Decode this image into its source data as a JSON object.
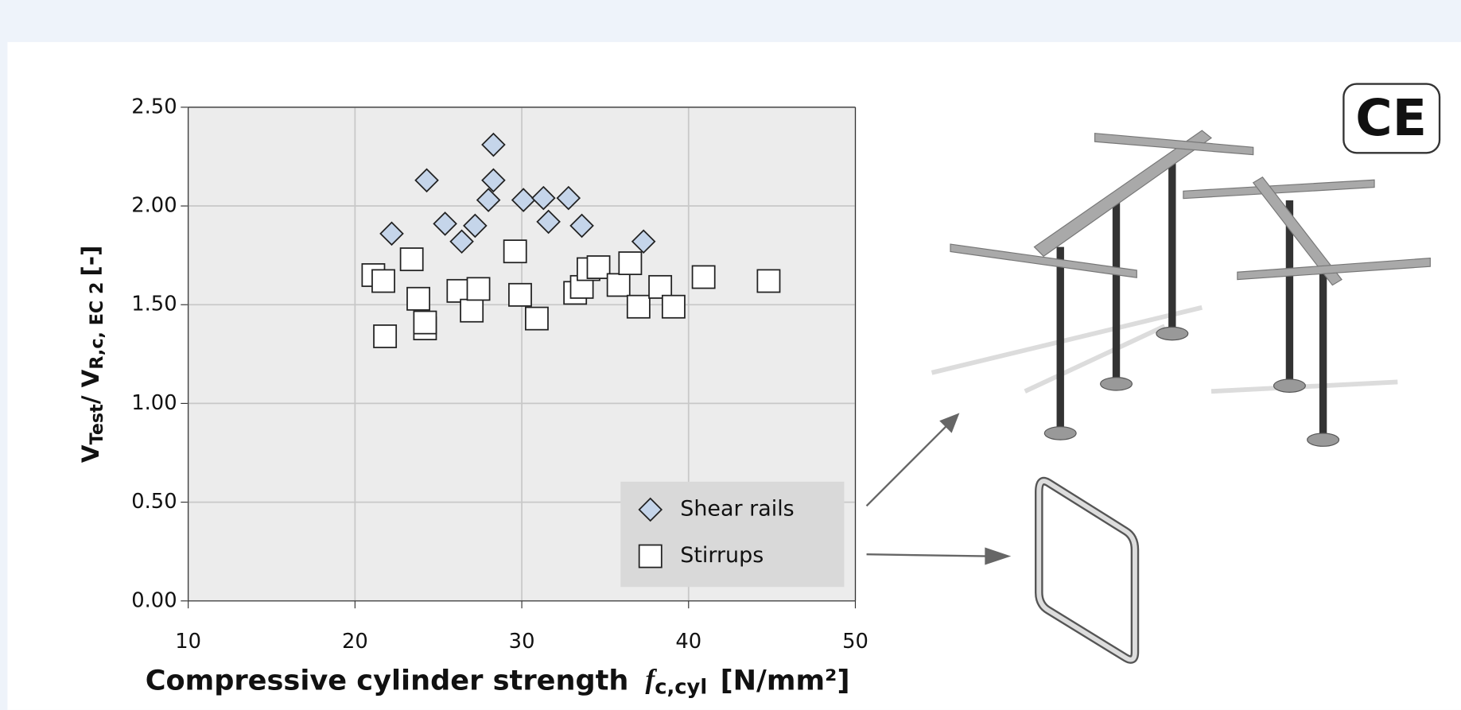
{
  "chart_data": {
    "type": "scatter",
    "y_label": {
      "main": "V",
      "sub1": "Test",
      "mid": "/ V",
      "sub2": "R,c, EC 2",
      "tail": "[-]"
    },
    "x_label": {
      "main": "Compressive cylinder strength",
      "var": "f",
      "sub": "c,cyl",
      "unit": "[N/mm²]"
    },
    "xlim": [
      10,
      50
    ],
    "xticks": [
      10,
      20,
      30,
      40,
      50
    ],
    "ylim": [
      0,
      2.5
    ],
    "yticks": [
      {
        "value": 0,
        "label": "0.00"
      },
      {
        "value": 0.5,
        "label": "0.50"
      },
      {
        "value": 1,
        "label": "1.00"
      },
      {
        "value": 1.5,
        "label": "1.50"
      },
      {
        "value": 2,
        "label": "2.00"
      },
      {
        "value": 2.5,
        "label": "2.50"
      }
    ],
    "grid": true,
    "series": [
      {
        "name": "Shear rails",
        "marker": "diamond",
        "color": "#c5d5ea",
        "x": [
          22.2,
          24.3,
          25.4,
          26.4,
          27.2,
          28.0,
          28.3,
          28.3,
          30.1,
          31.3,
          31.6,
          32.8,
          33.6,
          37.3
        ],
        "values": [
          1.86,
          2.13,
          1.91,
          1.82,
          1.9,
          2.03,
          2.31,
          2.13,
          2.03,
          2.04,
          1.92,
          2.04,
          1.9,
          1.82
        ]
      },
      {
        "name": "Stirrups",
        "marker": "square",
        "color": "#ffffff",
        "x": [
          21.1,
          21.7,
          21.8,
          23.4,
          23.8,
          24.2,
          24.2,
          26.2,
          27.0,
          27.4,
          29.6,
          29.9,
          30.9,
          33.2,
          33.6,
          34.0,
          34.6,
          35.8,
          36.5,
          37.0,
          38.3,
          39.1,
          40.9,
          44.8
        ],
        "values": [
          1.65,
          1.62,
          1.34,
          1.73,
          1.53,
          1.38,
          1.41,
          1.57,
          1.47,
          1.58,
          1.77,
          1.55,
          1.43,
          1.56,
          1.59,
          1.68,
          1.69,
          1.6,
          1.71,
          1.49,
          1.59,
          1.49,
          1.64,
          1.62
        ]
      }
    ]
  },
  "badge": "CE"
}
